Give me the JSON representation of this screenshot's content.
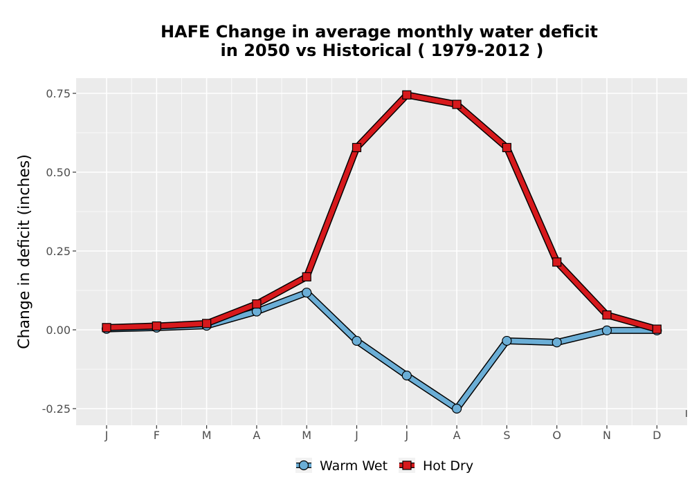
{
  "chart_data": {
    "type": "line",
    "title_line1": "HAFE  Change in average monthly water deficit",
    "title_line2": "in 2050 vs Historical ( 1979-2012 )",
    "xlabel": "",
    "ylabel": "Change in deficit (inches)",
    "categories": [
      "J",
      "F",
      "M",
      "A",
      "M",
      "J",
      "J",
      "A",
      "S",
      "O",
      "N",
      "D"
    ],
    "y_ticks": [
      -0.25,
      0.0,
      0.25,
      0.5,
      0.75
    ],
    "y_tick_labels": [
      "-0.25",
      "0.00",
      "0.25",
      "0.50",
      "0.75"
    ],
    "ylim": [
      -0.3,
      0.8
    ],
    "grid": true,
    "legend_position": "bottom",
    "series": [
      {
        "name": "Warm Wet",
        "color": "#6baed6",
        "marker": "circle",
        "values": [
          0.003,
          0.007,
          0.013,
          0.058,
          0.118,
          -0.035,
          -0.145,
          -0.25,
          -0.035,
          -0.04,
          -0.002,
          -0.002
        ]
      },
      {
        "name": "Hot Dry",
        "color": "#d7191c",
        "marker": "square",
        "values": [
          0.007,
          0.012,
          0.02,
          0.082,
          0.168,
          0.578,
          0.745,
          0.715,
          0.578,
          0.215,
          0.047,
          0.002
        ]
      }
    ],
    "corner_mark": "I"
  }
}
